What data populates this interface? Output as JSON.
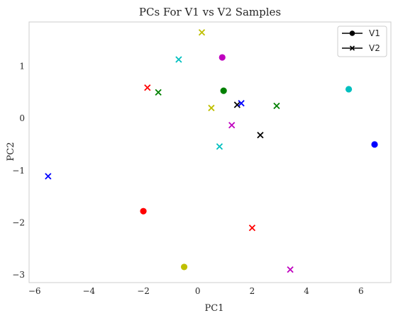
{
  "chart_data": {
    "type": "scatter",
    "title": "PCs For V1 vs V2 Samples",
    "xlabel": "PC1",
    "ylabel": "PC2",
    "xlim": [
      -6.2,
      7.1
    ],
    "ylim": [
      -3.15,
      1.85
    ],
    "xticks": [
      -6,
      -4,
      -2,
      0,
      2,
      4,
      6
    ],
    "xtick_labels": [
      "−6",
      "−4",
      "−2",
      "0",
      "2",
      "4",
      "6"
    ],
    "yticks": [
      -3,
      -2,
      -1,
      0,
      1
    ],
    "ytick_labels": [
      "−3",
      "−2",
      "−1",
      "0",
      "1"
    ],
    "grid": false,
    "legend_position": "top-right",
    "series": [
      {
        "name": "V1",
        "marker": "circle",
        "points": [
          {
            "x": 0.9,
            "y": 1.17,
            "color": "#bf00bf"
          },
          {
            "x": 0.95,
            "y": 0.53,
            "color": "#008000"
          },
          {
            "x": 5.55,
            "y": 0.56,
            "color": "#00bfbf"
          },
          {
            "x": 6.5,
            "y": -0.5,
            "color": "#0000ff"
          },
          {
            "x": -2.0,
            "y": -1.78,
            "color": "#ff0000"
          },
          {
            "x": -0.5,
            "y": -2.85,
            "color": "#bfbf00"
          }
        ]
      },
      {
        "name": "V2",
        "marker": "x",
        "points": [
          {
            "x": 0.15,
            "y": 1.65,
            "color": "#bfbf00"
          },
          {
            "x": -0.7,
            "y": 1.13,
            "color": "#00bfbf"
          },
          {
            "x": -1.85,
            "y": 0.59,
            "color": "#ff0000"
          },
          {
            "x": -1.45,
            "y": 0.5,
            "color": "#008000"
          },
          {
            "x": 0.5,
            "y": 0.2,
            "color": "#bfbf00"
          },
          {
            "x": 1.45,
            "y": 0.26,
            "color": "#000000"
          },
          {
            "x": 1.6,
            "y": 0.29,
            "color": "#0000ff"
          },
          {
            "x": 2.9,
            "y": 0.24,
            "color": "#008000"
          },
          {
            "x": 1.25,
            "y": -0.13,
            "color": "#bf00bf"
          },
          {
            "x": 2.3,
            "y": -0.32,
            "color": "#000000"
          },
          {
            "x": 0.8,
            "y": -0.54,
            "color": "#00bfbf"
          },
          {
            "x": -5.5,
            "y": -1.11,
            "color": "#0000ff"
          },
          {
            "x": 2.0,
            "y": -2.1,
            "color": "#ff0000"
          },
          {
            "x": 3.4,
            "y": -2.9,
            "color": "#bf00bf"
          }
        ]
      }
    ]
  }
}
